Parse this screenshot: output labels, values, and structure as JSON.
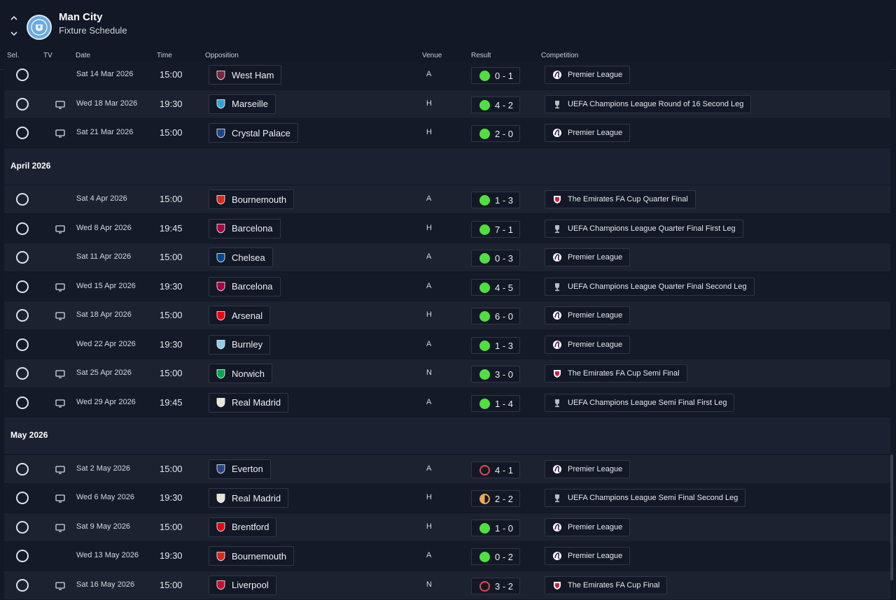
{
  "header": {
    "club_name": "Man City",
    "page_title": "Fixture Schedule",
    "nav_up_icon": "chevron-up-icon",
    "nav_down_icon": "chevron-down-icon"
  },
  "columns": {
    "sel": "Sel.",
    "tv": "TV",
    "date": "Date",
    "time": "Time",
    "opposition": "Opposition",
    "venue": "Venue",
    "result": "Result",
    "competition": "Competition"
  },
  "colors": {
    "background": "#131826",
    "row_alt": "#1c2230",
    "win": "#4fe03f",
    "loss": "#e24a4a",
    "draw": "#f0a84a"
  },
  "schedule": [
    {
      "type": "fixture",
      "tv": false,
      "date": "Sat 14 Mar 2026",
      "time": "15:00",
      "team": "West Ham",
      "badge": "#7a263a",
      "venue": "A",
      "outcome": "win",
      "score": "0 - 1",
      "competition": "Premier League",
      "comp_icon": "pl"
    },
    {
      "type": "fixture",
      "tv": true,
      "date": "Wed 18 Mar 2026",
      "time": "19:30",
      "team": "Marseille",
      "badge": "#2fa4d8",
      "venue": "H",
      "outcome": "win",
      "score": "4 - 2",
      "competition": "UEFA Champions League Round of 16 Second Leg",
      "comp_icon": "ucl"
    },
    {
      "type": "fixture",
      "tv": true,
      "date": "Sat 21 Mar 2026",
      "time": "15:00",
      "team": "Crystal Palace",
      "badge": "#1b458f",
      "venue": "H",
      "outcome": "win",
      "score": "2 - 0",
      "competition": "Premier League",
      "comp_icon": "pl"
    },
    {
      "type": "month",
      "label": "April 2026"
    },
    {
      "type": "fixture",
      "tv": false,
      "date": "Sat 4 Apr 2026",
      "time": "15:00",
      "team": "Bournemouth",
      "badge": "#da291c",
      "venue": "A",
      "outcome": "win",
      "score": "1 - 3",
      "competition": "The Emirates FA Cup Quarter Final",
      "comp_icon": "fa"
    },
    {
      "type": "fixture",
      "tv": true,
      "date": "Wed 8 Apr 2026",
      "time": "19:45",
      "team": "Barcelona",
      "badge": "#a50044",
      "venue": "H",
      "outcome": "win",
      "score": "7 - 1",
      "competition": "UEFA Champions League Quarter Final First Leg",
      "comp_icon": "ucl"
    },
    {
      "type": "fixture",
      "tv": false,
      "date": "Sat 11 Apr 2026",
      "time": "15:00",
      "team": "Chelsea",
      "badge": "#034694",
      "venue": "A",
      "outcome": "win",
      "score": "0 - 3",
      "competition": "Premier League",
      "comp_icon": "pl"
    },
    {
      "type": "fixture",
      "tv": true,
      "date": "Wed 15 Apr 2026",
      "time": "19:30",
      "team": "Barcelona",
      "badge": "#a50044",
      "venue": "A",
      "outcome": "win",
      "score": "4 - 5",
      "competition": "UEFA Champions League Quarter Final Second Leg",
      "comp_icon": "ucl"
    },
    {
      "type": "fixture",
      "tv": true,
      "date": "Sat 18 Apr 2026",
      "time": "15:00",
      "team": "Arsenal",
      "badge": "#ef0107",
      "venue": "H",
      "outcome": "win",
      "score": "6 - 0",
      "competition": "Premier League",
      "comp_icon": "pl"
    },
    {
      "type": "fixture",
      "tv": false,
      "date": "Wed 22 Apr 2026",
      "time": "19:30",
      "team": "Burnley",
      "badge": "#8ccce5",
      "venue": "A",
      "outcome": "win",
      "score": "1 - 3",
      "competition": "Premier League",
      "comp_icon": "pl"
    },
    {
      "type": "fixture",
      "tv": true,
      "date": "Sat 25 Apr 2026",
      "time": "15:00",
      "team": "Norwich",
      "badge": "#00a650",
      "venue": "N",
      "outcome": "win",
      "score": "3 - 0",
      "competition": "The Emirates FA Cup Semi Final",
      "comp_icon": "fa"
    },
    {
      "type": "fixture",
      "tv": true,
      "date": "Wed 29 Apr 2026",
      "time": "19:45",
      "team": "Real Madrid",
      "badge": "#e8e4d4",
      "venue": "A",
      "outcome": "win",
      "score": "1 - 4",
      "competition": "UEFA Champions League Semi Final First Leg",
      "comp_icon": "ucl"
    },
    {
      "type": "month",
      "label": "May 2026"
    },
    {
      "type": "fixture",
      "tv": true,
      "date": "Sat 2 May 2026",
      "time": "15:00",
      "team": "Everton",
      "badge": "#274488",
      "venue": "A",
      "outcome": "loss",
      "score": "4 - 1",
      "competition": "Premier League",
      "comp_icon": "pl"
    },
    {
      "type": "fixture",
      "tv": true,
      "date": "Wed 6 May 2026",
      "time": "19:30",
      "team": "Real Madrid",
      "badge": "#e8e4d4",
      "venue": "H",
      "outcome": "draw",
      "score": "2 - 2",
      "competition": "UEFA Champions League Semi Final Second Leg",
      "comp_icon": "ucl"
    },
    {
      "type": "fixture",
      "tv": true,
      "date": "Sat 9 May 2026",
      "time": "15:00",
      "team": "Brentford",
      "badge": "#e30613",
      "venue": "H",
      "outcome": "win",
      "score": "1 - 0",
      "competition": "Premier League",
      "comp_icon": "pl"
    },
    {
      "type": "fixture",
      "tv": false,
      "date": "Wed 13 May 2026",
      "time": "19:30",
      "team": "Bournemouth",
      "badge": "#da291c",
      "venue": "A",
      "outcome": "win",
      "score": "0 - 2",
      "competition": "Premier League",
      "comp_icon": "pl"
    },
    {
      "type": "fixture",
      "tv": true,
      "date": "Sat 16 May 2026",
      "time": "15:00",
      "team": "Liverpool",
      "badge": "#c8102e",
      "venue": "N",
      "outcome": "loss",
      "score": "3 - 2",
      "competition": "The Emirates FA Cup Final",
      "comp_icon": "fa"
    }
  ]
}
